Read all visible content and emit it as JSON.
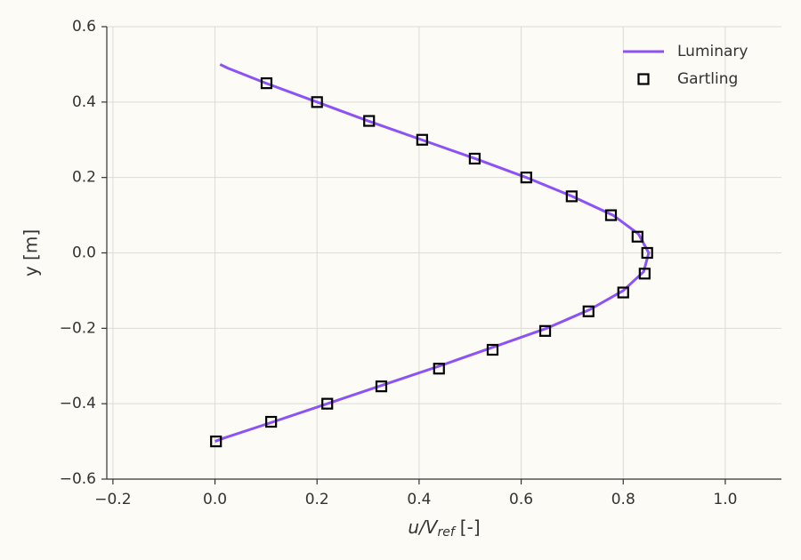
{
  "chart_data": {
    "type": "line",
    "xlabel": [
      "u/V",
      "ref",
      "[-]"
    ],
    "ylabel": "y [m]",
    "xlim": [
      -0.212,
      1.11
    ],
    "ylim": [
      -0.6,
      0.6
    ],
    "xticks": [
      {
        "value": -0.2,
        "label": "−0.2"
      },
      {
        "value": 0,
        "label": "0.0"
      },
      0.2,
      0.4,
      0.6,
      0.8,
      {
        "value": 1,
        "label": "1.0"
      }
    ],
    "yticks": [
      {
        "value": -0.6,
        "label": "−0.6"
      },
      {
        "value": -0.4,
        "label": "−0.4"
      },
      {
        "value": -0.2,
        "label": "−0.2"
      },
      {
        "value": 0,
        "label": "0.0"
      },
      0.2,
      0.4,
      0.6
    ],
    "grid": true,
    "legend": "upper right",
    "series": [
      {
        "name": "Luminary",
        "color": "#8c52f5",
        "style": "line",
        "x": [
          0.01,
          0.025,
          0.1,
          0.2,
          0.3,
          0.405,
          0.51,
          0.61,
          0.7,
          0.78,
          0.83,
          0.85,
          0.84,
          0.8,
          0.735,
          0.65,
          0.545,
          0.44,
          0.33,
          0.22,
          0.11,
          0.02,
          0.0
        ],
        "values": [
          0.5,
          0.49,
          0.45,
          0.4,
          0.35,
          0.3,
          0.25,
          0.2,
          0.15,
          0.1,
          0.05,
          0.0,
          -0.05,
          -0.1,
          -0.15,
          -0.2,
          -0.25,
          -0.3,
          -0.35,
          -0.4,
          -0.45,
          -0.49,
          -0.5
        ]
      },
      {
        "name": "Gartling",
        "color": "#000000",
        "style": "marker",
        "x": [
          0.101,
          0.2,
          0.302,
          0.406,
          0.509,
          0.61,
          0.699,
          0.776,
          0.828,
          0.847,
          0.842,
          0.8,
          0.732,
          0.647,
          0.544,
          0.439,
          0.326,
          0.22,
          0.11,
          0.002
        ],
        "values": [
          0.45,
          0.4,
          0.35,
          0.3,
          0.25,
          0.2,
          0.15,
          0.1,
          0.043,
          0.0,
          -0.055,
          -0.105,
          -0.155,
          -0.207,
          -0.257,
          -0.307,
          -0.354,
          -0.4,
          -0.448,
          -0.5
        ]
      }
    ]
  }
}
